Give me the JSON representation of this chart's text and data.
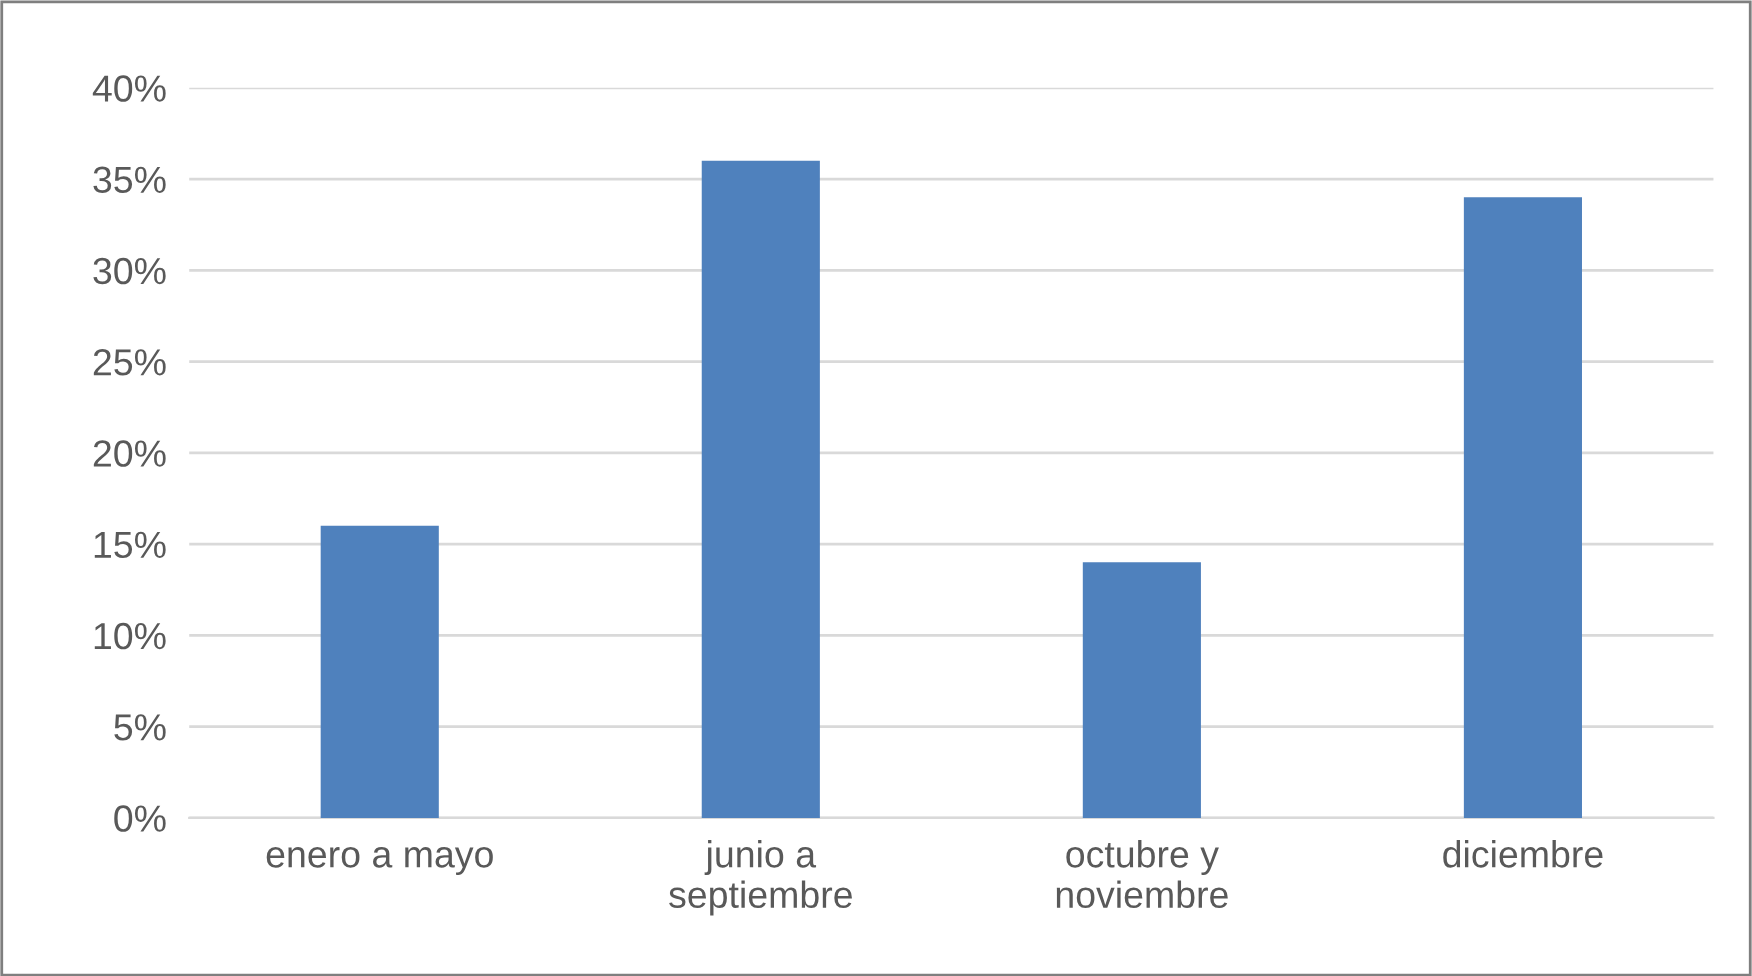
{
  "chart_data": {
    "type": "bar",
    "categories": [
      "enero a mayo",
      "junio a septiembre",
      "octubre y noviembre",
      "diciembre"
    ],
    "values": [
      16,
      36,
      14,
      34
    ],
    "color": "#4f81bd",
    "ylim": [
      0,
      40
    ],
    "yticks": [
      {
        "value": 0,
        "label": "0%"
      },
      {
        "value": 5,
        "label": "5%"
      },
      {
        "value": 10,
        "label": "10%"
      },
      {
        "value": 15,
        "label": "15%"
      },
      {
        "value": 20,
        "label": "20%"
      },
      {
        "value": 25,
        "label": "25%"
      },
      {
        "value": 30,
        "label": "30%"
      },
      {
        "value": 35,
        "label": "35%"
      },
      {
        "value": 40,
        "label": "40%"
      }
    ],
    "grid": "y"
  }
}
